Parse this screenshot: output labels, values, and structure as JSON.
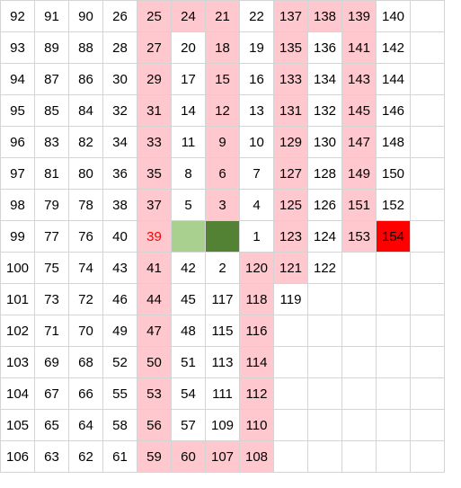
{
  "sheet": {
    "rows": [
      [
        {
          "v": "92"
        },
        {
          "v": "91"
        },
        {
          "v": "90"
        },
        {
          "v": "26"
        },
        {
          "v": "25",
          "f": "pink"
        },
        {
          "v": "24",
          "f": "pink"
        },
        {
          "v": "21",
          "f": "pink"
        },
        {
          "v": "22"
        },
        {
          "v": "137",
          "f": "pink"
        },
        {
          "v": "138",
          "f": "pink"
        },
        {
          "v": "139",
          "f": "pink"
        },
        {
          "v": "140"
        },
        {
          "v": ""
        }
      ],
      [
        {
          "v": "93"
        },
        {
          "v": "89"
        },
        {
          "v": "88"
        },
        {
          "v": "28"
        },
        {
          "v": "27",
          "f": "pink"
        },
        {
          "v": "20"
        },
        {
          "v": "18",
          "f": "pink"
        },
        {
          "v": "19"
        },
        {
          "v": "135",
          "f": "pink"
        },
        {
          "v": "136"
        },
        {
          "v": "141",
          "f": "pink"
        },
        {
          "v": "142"
        },
        {
          "v": ""
        }
      ],
      [
        {
          "v": "94"
        },
        {
          "v": "87"
        },
        {
          "v": "86"
        },
        {
          "v": "30"
        },
        {
          "v": "29",
          "f": "pink"
        },
        {
          "v": "17"
        },
        {
          "v": "15",
          "f": "pink"
        },
        {
          "v": "16"
        },
        {
          "v": "133",
          "f": "pink"
        },
        {
          "v": "134"
        },
        {
          "v": "143",
          "f": "pink"
        },
        {
          "v": "144"
        },
        {
          "v": ""
        }
      ],
      [
        {
          "v": "95"
        },
        {
          "v": "85"
        },
        {
          "v": "84"
        },
        {
          "v": "32"
        },
        {
          "v": "31",
          "f": "pink"
        },
        {
          "v": "14"
        },
        {
          "v": "12",
          "f": "pink"
        },
        {
          "v": "13"
        },
        {
          "v": "131",
          "f": "pink"
        },
        {
          "v": "132"
        },
        {
          "v": "145",
          "f": "pink"
        },
        {
          "v": "146"
        },
        {
          "v": ""
        }
      ],
      [
        {
          "v": "96"
        },
        {
          "v": "83"
        },
        {
          "v": "82"
        },
        {
          "v": "34"
        },
        {
          "v": "33",
          "f": "pink"
        },
        {
          "v": "11"
        },
        {
          "v": "9",
          "f": "pink"
        },
        {
          "v": "10"
        },
        {
          "v": "129",
          "f": "pink"
        },
        {
          "v": "130"
        },
        {
          "v": "147",
          "f": "pink"
        },
        {
          "v": "148"
        },
        {
          "v": ""
        }
      ],
      [
        {
          "v": "97"
        },
        {
          "v": "81"
        },
        {
          "v": "80"
        },
        {
          "v": "36"
        },
        {
          "v": "35",
          "f": "pink"
        },
        {
          "v": "8"
        },
        {
          "v": "6",
          "f": "pink"
        },
        {
          "v": "7"
        },
        {
          "v": "127",
          "f": "pink"
        },
        {
          "v": "128"
        },
        {
          "v": "149",
          "f": "pink"
        },
        {
          "v": "150"
        },
        {
          "v": ""
        }
      ],
      [
        {
          "v": "98"
        },
        {
          "v": "79"
        },
        {
          "v": "78"
        },
        {
          "v": "38"
        },
        {
          "v": "37",
          "f": "pink"
        },
        {
          "v": "5"
        },
        {
          "v": "3",
          "f": "pink"
        },
        {
          "v": "4"
        },
        {
          "v": "125",
          "f": "pink"
        },
        {
          "v": "126"
        },
        {
          "v": "151",
          "f": "pink"
        },
        {
          "v": "152"
        },
        {
          "v": ""
        }
      ],
      [
        {
          "v": "99"
        },
        {
          "v": "77"
        },
        {
          "v": "76"
        },
        {
          "v": "40"
        },
        {
          "v": "39",
          "f": "pink",
          "t": "redtext"
        },
        {
          "v": "",
          "f": "lightgreen"
        },
        {
          "v": "",
          "f": "darkgreen"
        },
        {
          "v": "1"
        },
        {
          "v": "123",
          "f": "pink"
        },
        {
          "v": "124"
        },
        {
          "v": "153",
          "f": "pink"
        },
        {
          "v": "154",
          "f": "red"
        },
        {
          "v": ""
        }
      ],
      [
        {
          "v": "100"
        },
        {
          "v": "75"
        },
        {
          "v": "74"
        },
        {
          "v": "43"
        },
        {
          "v": "41",
          "f": "pink"
        },
        {
          "v": "42"
        },
        {
          "v": "2"
        },
        {
          "v": "120",
          "f": "pink"
        },
        {
          "v": "121",
          "f": "pink"
        },
        {
          "v": "122"
        },
        {
          "v": ""
        },
        {
          "v": ""
        },
        {
          "v": ""
        }
      ],
      [
        {
          "v": "101"
        },
        {
          "v": "73"
        },
        {
          "v": "72"
        },
        {
          "v": "46"
        },
        {
          "v": "44",
          "f": "pink"
        },
        {
          "v": "45"
        },
        {
          "v": "117"
        },
        {
          "v": "118",
          "f": "pink"
        },
        {
          "v": "119"
        },
        {
          "v": ""
        },
        {
          "v": ""
        },
        {
          "v": ""
        },
        {
          "v": ""
        }
      ],
      [
        {
          "v": "102"
        },
        {
          "v": "71"
        },
        {
          "v": "70"
        },
        {
          "v": "49"
        },
        {
          "v": "47",
          "f": "pink"
        },
        {
          "v": "48"
        },
        {
          "v": "115"
        },
        {
          "v": "116",
          "f": "pink"
        },
        {
          "v": ""
        },
        {
          "v": ""
        },
        {
          "v": ""
        },
        {
          "v": ""
        },
        {
          "v": ""
        }
      ],
      [
        {
          "v": "103"
        },
        {
          "v": "69"
        },
        {
          "v": "68"
        },
        {
          "v": "52"
        },
        {
          "v": "50",
          "f": "pink"
        },
        {
          "v": "51"
        },
        {
          "v": "113"
        },
        {
          "v": "114",
          "f": "pink"
        },
        {
          "v": ""
        },
        {
          "v": ""
        },
        {
          "v": ""
        },
        {
          "v": ""
        },
        {
          "v": ""
        }
      ],
      [
        {
          "v": "104"
        },
        {
          "v": "67"
        },
        {
          "v": "66"
        },
        {
          "v": "55"
        },
        {
          "v": "53",
          "f": "pink"
        },
        {
          "v": "54"
        },
        {
          "v": "111"
        },
        {
          "v": "112",
          "f": "pink"
        },
        {
          "v": ""
        },
        {
          "v": ""
        },
        {
          "v": ""
        },
        {
          "v": ""
        },
        {
          "v": ""
        }
      ],
      [
        {
          "v": "105"
        },
        {
          "v": "65"
        },
        {
          "v": "64"
        },
        {
          "v": "58"
        },
        {
          "v": "56",
          "f": "pink"
        },
        {
          "v": "57"
        },
        {
          "v": "109"
        },
        {
          "v": "110",
          "f": "pink"
        },
        {
          "v": ""
        },
        {
          "v": ""
        },
        {
          "v": ""
        },
        {
          "v": ""
        },
        {
          "v": ""
        }
      ],
      [
        {
          "v": "106"
        },
        {
          "v": "63"
        },
        {
          "v": "62"
        },
        {
          "v": "61"
        },
        {
          "v": "59",
          "f": "pink"
        },
        {
          "v": "60",
          "f": "pink"
        },
        {
          "v": "107",
          "f": "pink"
        },
        {
          "v": "108",
          "f": "pink"
        },
        {
          "v": ""
        },
        {
          "v": ""
        },
        {
          "v": ""
        },
        {
          "v": ""
        },
        {
          "v": ""
        }
      ]
    ]
  }
}
